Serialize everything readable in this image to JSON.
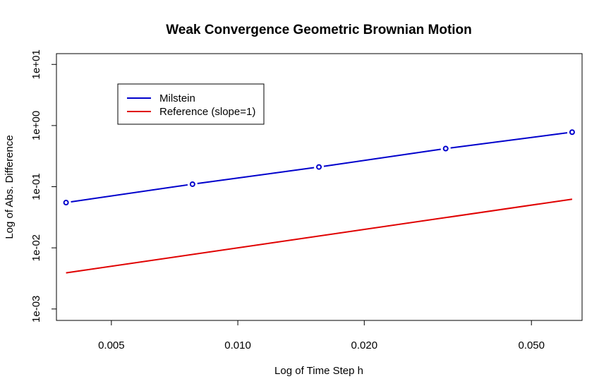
{
  "chart_data": {
    "type": "line",
    "title": "Weak Convergence Geometric Brownian Motion",
    "xlabel": "Log of Time Step h",
    "ylabel": "Log of Abs. Difference",
    "x_scale": "log",
    "y_scale": "log",
    "xlim": [
      0.0037,
      0.066
    ],
    "ylim": [
      0.00065,
      15
    ],
    "x_ticks": [
      {
        "value": 0.005,
        "label": "0.005"
      },
      {
        "value": 0.01,
        "label": "0.010"
      },
      {
        "value": 0.02,
        "label": "0.020"
      },
      {
        "value": 0.05,
        "label": "0.050"
      }
    ],
    "y_ticks": [
      {
        "value": 0.001,
        "label": "1e-03"
      },
      {
        "value": 0.01,
        "label": "1e-02"
      },
      {
        "value": 0.1,
        "label": "1e-01"
      },
      {
        "value": 1,
        "label": "1e+00"
      },
      {
        "value": 10,
        "label": "1e+01"
      }
    ],
    "grid": false,
    "legend_position": "top-left",
    "series": [
      {
        "name": "Milstein",
        "color": "#0000cc",
        "markers": "open-circle",
        "x": [
          0.0039,
          0.0078,
          0.0156,
          0.03125,
          0.0625
        ],
        "y": [
          0.055,
          0.11,
          0.21,
          0.42,
          0.78
        ]
      },
      {
        "name": "Reference (slope=1)",
        "color": "#e00000",
        "markers": "none",
        "x": [
          0.0039,
          0.0625
        ],
        "y": [
          0.0039,
          0.0625
        ]
      }
    ]
  }
}
